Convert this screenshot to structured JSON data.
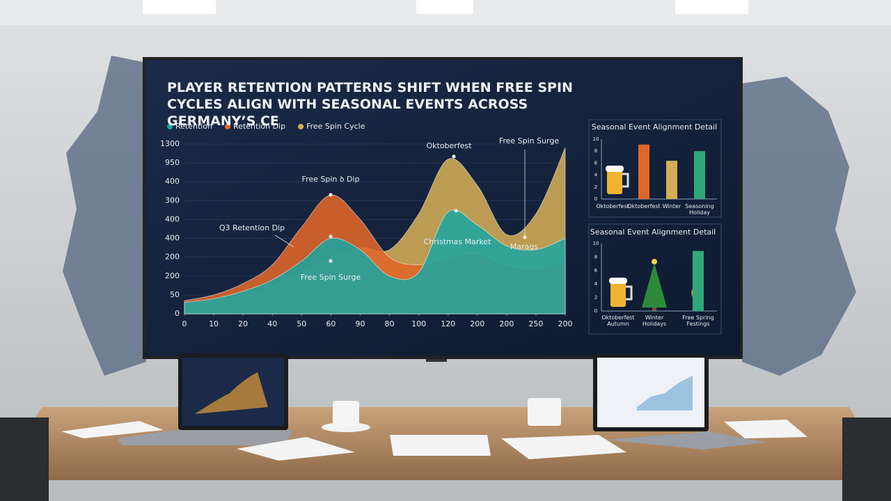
{
  "chart_data": [
    {
      "type": "area",
      "title": "PLAYER RETENTION PATTERNS SHIFT WHEN FREE SPIN CYCLES ALIGN WITH SEASONAL EVENTS ACROSS GERMANY’S CE",
      "x": [
        0,
        1,
        2,
        3,
        4,
        5,
        6,
        7,
        8,
        9,
        10,
        11,
        12,
        13
      ],
      "xlim": [
        0,
        13
      ],
      "xticks": [
        0,
        {
          "value": 1,
          "label": "10"
        },
        {
          "value": 2,
          "label": "20"
        },
        {
          "value": 3,
          "label": "40"
        },
        {
          "value": 4,
          "label": "50"
        },
        {
          "value": 5,
          "label": "60"
        },
        {
          "value": 6,
          "label": "90"
        },
        {
          "value": 7,
          "label": "80"
        },
        {
          "value": 8,
          "label": "100"
        },
        {
          "value": 9,
          "label": "120"
        },
        {
          "value": 10,
          "label": "200"
        },
        {
          "value": 11,
          "label": "200"
        },
        {
          "value": 12,
          "label": "250"
        },
        {
          "value": 13,
          "label": "200"
        }
      ],
      "ylim": [
        0,
        9
      ],
      "yticks": [
        0,
        {
          "value": 1,
          "label": "50"
        },
        {
          "value": 2,
          "label": "200"
        },
        {
          "value": 3,
          "label": "200"
        },
        {
          "value": 4,
          "label": "400"
        },
        {
          "value": 5,
          "label": "400"
        },
        {
          "value": 6,
          "label": "300"
        },
        {
          "value": 7,
          "label": "400"
        },
        {
          "value": 8,
          "label": "950"
        },
        {
          "value": 9,
          "label": "1300"
        }
      ],
      "grid": true,
      "series": [
        {
          "name": "Free Spin Cycle",
          "color": "#d4ad55",
          "values": [
            0.5,
            0.7,
            1.0,
            1.5,
            2.2,
            3.0,
            3.5,
            3.4,
            5.3,
            8.2,
            6.8,
            4.2,
            5.3,
            8.8
          ]
        },
        {
          "name": "Retention Dip",
          "color": "#e0672a",
          "values": [
            0.7,
            1.0,
            1.6,
            2.6,
            4.6,
            6.3,
            5.0,
            3.0,
            2.6,
            3.0,
            3.2,
            2.6,
            2.4,
            2.8
          ]
        },
        {
          "name": "Retention",
          "color": "#1fa5a0",
          "values": [
            0.6,
            0.8,
            1.2,
            1.8,
            2.8,
            4.0,
            3.4,
            2.0,
            2.2,
            5.4,
            4.7,
            3.6,
            3.4,
            4.0
          ]
        }
      ],
      "legend_order": [
        "Retention",
        "Retention Dip",
        "Free Spin Cycle"
      ],
      "annotations": [
        "Free Spin ꝺ Dip",
        "Oktoberfest",
        "Free Spin Surge",
        "Q3 Retention Dip",
        "Christmas Market",
        "Marags",
        "Free Spin Surge"
      ]
    },
    {
      "type": "bar",
      "title": "Seasonal Event Alignment Detail",
      "categories": [
        "Oktoberfest",
        "Oktoberfest",
        "Winter",
        "Seasoning Holiday"
      ],
      "values": [
        null,
        9.1,
        6.4,
        8.0
      ],
      "colors": [
        null,
        "#e0672a",
        "#d4ad55",
        "#2fa878"
      ],
      "ylim": [
        0,
        10
      ],
      "yticks": [
        0,
        2,
        4,
        6,
        8,
        10
      ]
    },
    {
      "type": "bar",
      "title": "Seasonal Event Alignment Detail",
      "categories": [
        "Oktoberfest Autumn",
        "Winter Holidays",
        "Free Spring Festings"
      ],
      "values": [
        null,
        null,
        8.9
      ],
      "colors": [
        null,
        null,
        "#2fa878"
      ],
      "ylim": [
        0,
        10
      ],
      "yticks": [
        0,
        2,
        4,
        6,
        8,
        10
      ]
    }
  ]
}
